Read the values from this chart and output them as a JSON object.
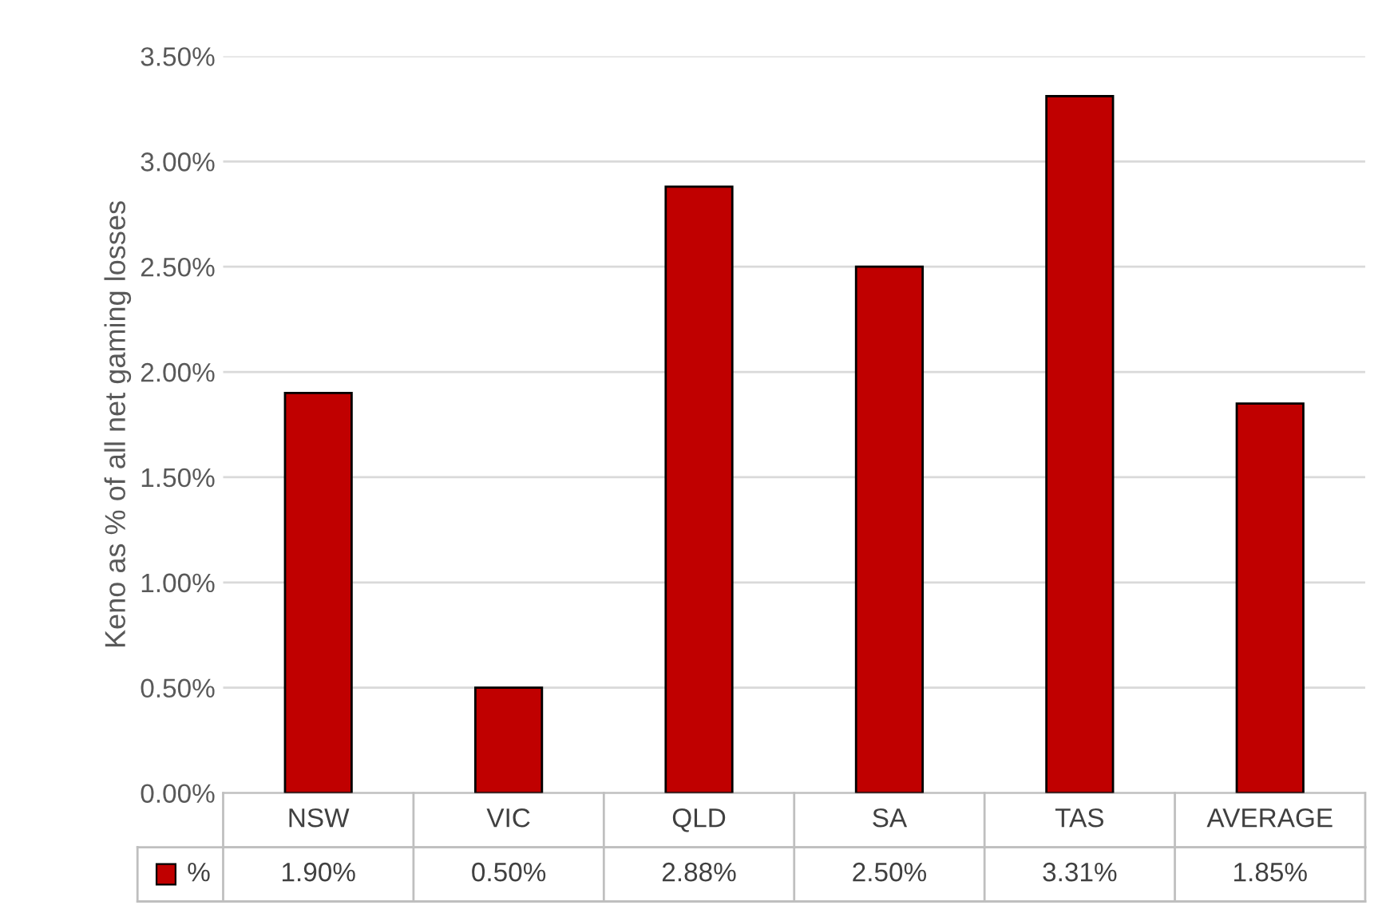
{
  "chart_data": {
    "type": "bar",
    "ylabel": "Keno as % of all net gaming losses",
    "categories": [
      "NSW",
      "VIC",
      "QLD",
      "SA",
      "TAS",
      "AVERAGE"
    ],
    "series": [
      {
        "name": "%",
        "color": "#c00000",
        "values": [
          1.9,
          0.5,
          2.88,
          2.5,
          3.31,
          1.85
        ],
        "value_labels": [
          "1.90%",
          "0.50%",
          "2.88%",
          "2.50%",
          "3.31%",
          "1.85%"
        ]
      }
    ],
    "ylim": [
      0,
      3.5
    ],
    "yticks": [
      {
        "value": 0,
        "label": "0.00%"
      },
      {
        "value": 0.5,
        "label": "0.50%"
      },
      {
        "value": 1.0,
        "label": "1.00%"
      },
      {
        "value": 1.5,
        "label": "1.50%"
      },
      {
        "value": 2.0,
        "label": "2.00%"
      },
      {
        "value": 2.5,
        "label": "2.50%"
      },
      {
        "value": 3.0,
        "label": "3.00%"
      },
      {
        "value": 3.5,
        "label": "3.50%"
      }
    ],
    "grid": "y"
  }
}
